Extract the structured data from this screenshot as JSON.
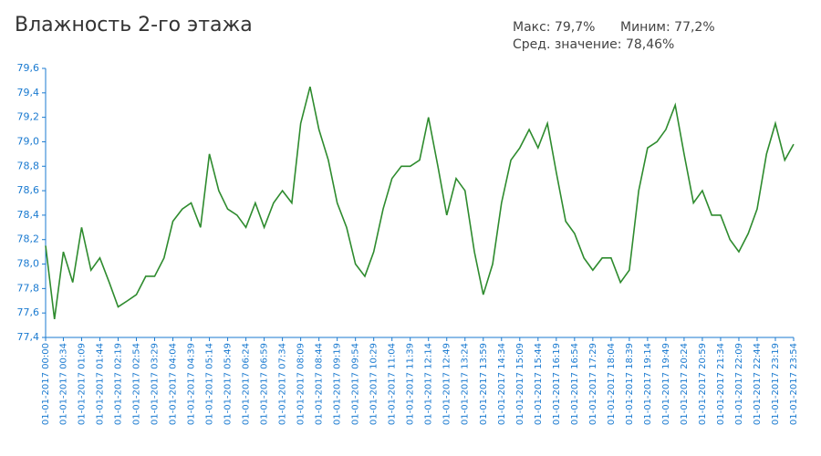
{
  "chart_data": {
    "type": "line",
    "title": "Влажность 2-го этажа",
    "annotations": [
      "Макс: 79,7%",
      "Миним: 77,2%",
      "Сред. значение: 78,46%"
    ],
    "color": "#2e8b2e",
    "axis_color": "#1a7ad0",
    "x": [
      "01-01-2017 00:00",
      "01-01-2017 00:17",
      "01-01-2017 00:34",
      "01-01-2017 00:52",
      "01-01-2017 01:09",
      "01-01-2017 01:27",
      "01-01-2017 01:44",
      "01-01-2017 02:02",
      "01-01-2017 02:19",
      "01-01-2017 02:37",
      "01-01-2017 02:54",
      "01-01-2017 03:12",
      "01-01-2017 03:29",
      "01-01-2017 03:47",
      "01-01-2017 04:04",
      "01-01-2017 04:22",
      "01-01-2017 04:39",
      "01-01-2017 04:57",
      "01-01-2017 05:14",
      "01-01-2017 05:32",
      "01-01-2017 05:49",
      "01-01-2017 06:07",
      "01-01-2017 06:24",
      "01-01-2017 06:42",
      "01-01-2017 06:59",
      "01-01-2017 07:17",
      "01-01-2017 07:34",
      "01-01-2017 07:52",
      "01-01-2017 08:09",
      "01-01-2017 08:27",
      "01-01-2017 08:44",
      "01-01-2017 09:02",
      "01-01-2017 09:19",
      "01-01-2017 09:37",
      "01-01-2017 09:54",
      "01-01-2017 10:12",
      "01-01-2017 10:29",
      "01-01-2017 10:47",
      "01-01-2017 11:04",
      "01-01-2017 11:22",
      "01-01-2017 11:39",
      "01-01-2017 11:57",
      "01-01-2017 12:14",
      "01-01-2017 12:32",
      "01-01-2017 12:49",
      "01-01-2017 13:07",
      "01-01-2017 13:24",
      "01-01-2017 13:42",
      "01-01-2017 13:59",
      "01-01-2017 14:17",
      "01-01-2017 14:34",
      "01-01-2017 14:52",
      "01-01-2017 15:09",
      "01-01-2017 15:27",
      "01-01-2017 15:44",
      "01-01-2017 16:02",
      "01-01-2017 16:19",
      "01-01-2017 16:37",
      "01-01-2017 16:54",
      "01-01-2017 17:12",
      "01-01-2017 17:29",
      "01-01-2017 17:47",
      "01-01-2017 18:04",
      "01-01-2017 18:22",
      "01-01-2017 18:39",
      "01-01-2017 18:57",
      "01-01-2017 19:14",
      "01-01-2017 19:32",
      "01-01-2017 19:49",
      "01-01-2017 20:07",
      "01-01-2017 20:24",
      "01-01-2017 20:42",
      "01-01-2017 20:59",
      "01-01-2017 21:17",
      "01-01-2017 21:34",
      "01-01-2017 21:52",
      "01-01-2017 22:09",
      "01-01-2017 22:27",
      "01-01-2017 22:44",
      "01-01-2017 23:02",
      "01-01-2017 23:19",
      "01-01-2017 23:37",
      "01-01-2017 23:54"
    ],
    "values": [
      78.15,
      77.55,
      78.1,
      77.85,
      78.3,
      77.95,
      78.05,
      77.85,
      77.65,
      77.7,
      77.75,
      77.9,
      77.9,
      78.05,
      78.35,
      78.45,
      78.5,
      78.3,
      78.9,
      78.6,
      78.45,
      78.4,
      78.3,
      78.5,
      78.3,
      78.5,
      78.6,
      78.5,
      79.15,
      79.45,
      79.1,
      78.85,
      78.5,
      78.3,
      78.0,
      77.9,
      78.1,
      78.45,
      78.7,
      78.8,
      78.8,
      78.85,
      79.2,
      78.8,
      78.4,
      78.7,
      78.6,
      78.1,
      77.75,
      78.0,
      78.5,
      78.85,
      78.95,
      79.1,
      78.95,
      79.15,
      78.75,
      78.35,
      78.25,
      78.05,
      77.95,
      78.05,
      78.05,
      77.85,
      77.95,
      78.6,
      78.95,
      79.0,
      79.1,
      79.3,
      78.9,
      78.5,
      78.6,
      78.4,
      78.4,
      78.2,
      78.1,
      78.25,
      78.45,
      78.9,
      79.15,
      78.85,
      78.98
    ],
    "xlim": [
      "01-01-2017 00:00",
      "01-01-2017 23:54"
    ],
    "xticks": [
      "01-01-2017 00:00",
      "01-01-2017 00:34",
      "01-01-2017 01:09",
      "01-01-2017 01:44",
      "01-01-2017 02:19",
      "01-01-2017 02:54",
      "01-01-2017 03:29",
      "01-01-2017 04:04",
      "01-01-2017 04:39",
      "01-01-2017 05:14",
      "01-01-2017 05:49",
      "01-01-2017 06:24",
      "01-01-2017 06:59",
      "01-01-2017 07:34",
      "01-01-2017 08:09",
      "01-01-2017 08:44",
      "01-01-2017 09:19",
      "01-01-2017 09:54",
      "01-01-2017 10:29",
      "01-01-2017 11:04",
      "01-01-2017 11:39",
      "01-01-2017 12:14",
      "01-01-2017 12:49",
      "01-01-2017 13:24",
      "01-01-2017 13:59",
      "01-01-2017 14:34",
      "01-01-2017 15:09",
      "01-01-2017 15:44",
      "01-01-2017 16:19",
      "01-01-2017 16:54",
      "01-01-2017 17:29",
      "01-01-2017 18:04",
      "01-01-2017 18:39",
      "01-01-2017 19:14",
      "01-01-2017 19:49",
      "01-01-2017 20:24",
      "01-01-2017 20:59",
      "01-01-2017 21:34",
      "01-01-2017 22:09",
      "01-01-2017 22:44",
      "01-01-2017 23:19",
      "01-01-2017 23:54"
    ],
    "ylim": [
      77.4,
      79.6
    ],
    "yticks": [
      {
        "value": 77.4,
        "label": "77,4"
      },
      {
        "value": 77.6,
        "label": "77,6"
      },
      {
        "value": 77.8,
        "label": "77,8"
      },
      {
        "value": 78.0,
        "label": "78,0"
      },
      {
        "value": 78.2,
        "label": "78,2"
      },
      {
        "value": 78.4,
        "label": "78,4"
      },
      {
        "value": 78.6,
        "label": "78,6"
      },
      {
        "value": 78.8,
        "label": "78,8"
      },
      {
        "value": 79.0,
        "label": "79,0"
      },
      {
        "value": 79.2,
        "label": "79,2"
      },
      {
        "value": 79.4,
        "label": "79,4"
      },
      {
        "value": 79.6,
        "label": "79,6"
      }
    ]
  }
}
